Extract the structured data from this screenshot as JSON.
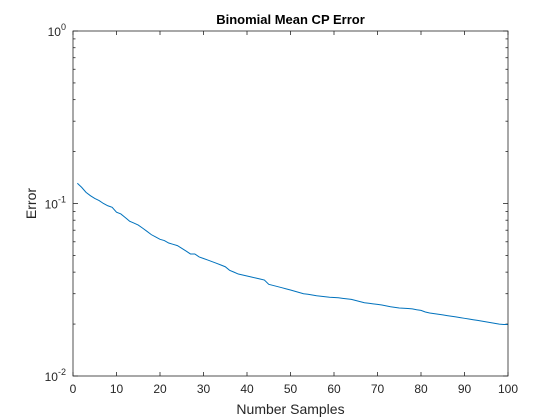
{
  "chart_data": {
    "type": "line",
    "title": "Binomial Mean CP Error",
    "xlabel": "Number Samples",
    "ylabel": "Error",
    "xlim": [
      0,
      100
    ],
    "ylim": [
      0.01,
      1
    ],
    "yscale": "log",
    "grid": false,
    "box": true,
    "x_ticks": [
      0,
      10,
      20,
      30,
      40,
      50,
      60,
      70,
      80,
      90,
      100
    ],
    "x_tick_labels": [
      "0",
      "10",
      "20",
      "30",
      "40",
      "50",
      "60",
      "70",
      "80",
      "90",
      "100"
    ],
    "y_ticks": [
      0.01,
      0.1,
      1
    ],
    "y_tick_labels": [
      {
        "base": "10",
        "exp": "-2"
      },
      {
        "base": "10",
        "exp": "-1"
      },
      {
        "base": "10",
        "exp": "0"
      }
    ],
    "series": [
      {
        "color": "#0072bd",
        "points": [
          [
            1,
            0.131
          ],
          [
            2,
            0.124
          ],
          [
            3,
            0.116
          ],
          [
            4,
            0.111
          ],
          [
            5,
            0.107
          ],
          [
            6,
            0.104
          ],
          [
            7,
            0.1
          ],
          [
            8,
            0.097
          ],
          [
            9,
            0.095
          ],
          [
            10,
            0.089
          ],
          [
            11,
            0.087
          ],
          [
            12,
            0.083
          ],
          [
            13,
            0.079
          ],
          [
            14,
            0.077
          ],
          [
            15,
            0.075
          ],
          [
            16,
            0.072
          ],
          [
            17,
            0.069
          ],
          [
            18,
            0.066
          ],
          [
            19,
            0.064
          ],
          [
            20,
            0.062
          ],
          [
            21,
            0.061
          ],
          [
            22,
            0.059
          ],
          [
            23,
            0.058
          ],
          [
            24,
            0.057
          ],
          [
            25,
            0.055
          ],
          [
            26,
            0.053
          ],
          [
            27,
            0.051
          ],
          [
            28,
            0.051
          ],
          [
            29,
            0.049
          ],
          [
            30,
            0.048
          ],
          [
            31,
            0.047
          ],
          [
            32,
            0.046
          ],
          [
            33,
            0.045
          ],
          [
            34,
            0.044
          ],
          [
            35,
            0.043
          ],
          [
            36,
            0.041
          ],
          [
            37,
            0.04
          ],
          [
            38,
            0.039
          ],
          [
            39,
            0.0385
          ],
          [
            40,
            0.038
          ],
          [
            41,
            0.0375
          ],
          [
            42,
            0.037
          ],
          [
            43,
            0.0365
          ],
          [
            44,
            0.036
          ],
          [
            45,
            0.034
          ],
          [
            46,
            0.0335
          ],
          [
            47,
            0.033
          ],
          [
            48,
            0.0325
          ],
          [
            49,
            0.032
          ],
          [
            50,
            0.0315
          ],
          [
            51,
            0.031
          ],
          [
            52,
            0.0305
          ],
          [
            53,
            0.03
          ],
          [
            54,
            0.0298
          ],
          [
            55,
            0.0295
          ],
          [
            56,
            0.0292
          ],
          [
            57,
            0.029
          ],
          [
            58,
            0.0288
          ],
          [
            59,
            0.0286
          ],
          [
            60,
            0.0285
          ],
          [
            61,
            0.0284
          ],
          [
            62,
            0.0282
          ],
          [
            63,
            0.028
          ],
          [
            64,
            0.0278
          ],
          [
            65,
            0.0274
          ],
          [
            66,
            0.027
          ],
          [
            67,
            0.0266
          ],
          [
            68,
            0.0264
          ],
          [
            69,
            0.0262
          ],
          [
            70,
            0.026
          ],
          [
            71,
            0.0258
          ],
          [
            72,
            0.0255
          ],
          [
            73,
            0.0252
          ],
          [
            74,
            0.025
          ],
          [
            75,
            0.0248
          ],
          [
            76,
            0.0247
          ],
          [
            77,
            0.0246
          ],
          [
            78,
            0.0245
          ],
          [
            79,
            0.0242
          ],
          [
            80,
            0.024
          ],
          [
            81,
            0.0235
          ],
          [
            82,
            0.0232
          ],
          [
            83,
            0.023
          ],
          [
            84,
            0.0228
          ],
          [
            85,
            0.0226
          ],
          [
            86,
            0.0224
          ],
          [
            87,
            0.0222
          ],
          [
            88,
            0.022
          ],
          [
            89,
            0.0218
          ],
          [
            90,
            0.0216
          ],
          [
            91,
            0.0214
          ],
          [
            92,
            0.0212
          ],
          [
            93,
            0.021
          ],
          [
            94,
            0.0208
          ],
          [
            95,
            0.0206
          ],
          [
            96,
            0.0204
          ],
          [
            97,
            0.0202
          ],
          [
            98,
            0.02
          ],
          [
            99,
            0.0199
          ],
          [
            100,
            0.0199
          ]
        ]
      }
    ]
  }
}
